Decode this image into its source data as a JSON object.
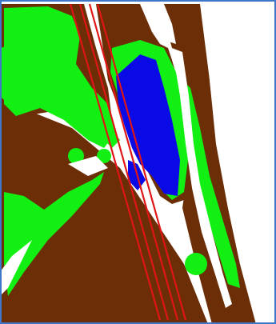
{
  "map": {
    "kind": "land-cover-classification",
    "legend_colors": {
      "soil": "#6b2e06",
      "vegetation": "#12ef12",
      "water": "#0a0ae6",
      "road": "#e01616",
      "unclassified": "#ffffff",
      "frame": "#3f77c8"
    },
    "classes_shown": [
      "soil",
      "vegetation",
      "water",
      "road",
      "unclassified"
    ]
  }
}
